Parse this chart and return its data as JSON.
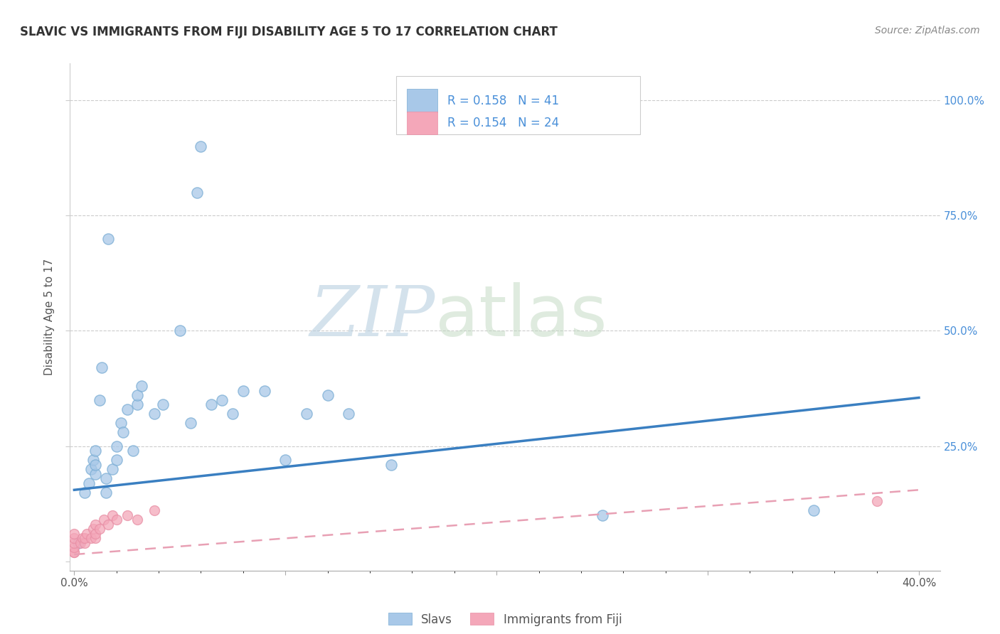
{
  "title": "SLAVIC VS IMMIGRANTS FROM FIJI DISABILITY AGE 5 TO 17 CORRELATION CHART",
  "source_text": "Source: ZipAtlas.com",
  "ylabel": "Disability Age 5 to 17",
  "xlim": [
    -0.002,
    0.41
  ],
  "ylim": [
    -0.02,
    1.08
  ],
  "slavs_color": "#A8C8E8",
  "slavs_edge": "#7aadd4",
  "fiji_color": "#F4A7B9",
  "fiji_edge": "#e88fa5",
  "trend_blue": "#3a7fc1",
  "trend_pink": "#e8a0b4",
  "background_color": "#ffffff",
  "grid_color": "#cccccc",
  "watermark_zip": "ZIP",
  "watermark_atlas": "atlas",
  "watermark_color_zip": "#b8cfe0",
  "watermark_color_atlas": "#c8d8b0",
  "right_tick_color": "#4A90D9",
  "slavs_x": [
    0.002,
    0.005,
    0.007,
    0.008,
    0.009,
    0.01,
    0.01,
    0.01,
    0.012,
    0.013,
    0.015,
    0.015,
    0.016,
    0.018,
    0.02,
    0.02,
    0.022,
    0.023,
    0.025,
    0.028,
    0.03,
    0.03,
    0.032,
    0.038,
    0.042,
    0.05,
    0.055,
    0.058,
    0.06,
    0.065,
    0.07,
    0.075,
    0.08,
    0.09,
    0.1,
    0.11,
    0.12,
    0.13,
    0.15,
    0.25,
    0.35
  ],
  "slavs_y": [
    0.04,
    0.15,
    0.17,
    0.2,
    0.22,
    0.19,
    0.21,
    0.24,
    0.35,
    0.42,
    0.15,
    0.18,
    0.7,
    0.2,
    0.22,
    0.25,
    0.3,
    0.28,
    0.33,
    0.24,
    0.34,
    0.36,
    0.38,
    0.32,
    0.34,
    0.5,
    0.3,
    0.8,
    0.9,
    0.34,
    0.35,
    0.32,
    0.37,
    0.37,
    0.22,
    0.32,
    0.36,
    0.32,
    0.21,
    0.1,
    0.11
  ],
  "fiji_x": [
    0.0,
    0.0,
    0.0,
    0.0,
    0.0,
    0.0,
    0.003,
    0.004,
    0.005,
    0.005,
    0.006,
    0.008,
    0.009,
    0.01,
    0.01,
    0.01,
    0.012,
    0.014,
    0.016,
    0.018,
    0.02,
    0.025,
    0.03,
    0.038,
    0.38
  ],
  "fiji_y": [
    0.02,
    0.02,
    0.03,
    0.04,
    0.05,
    0.06,
    0.04,
    0.05,
    0.04,
    0.05,
    0.06,
    0.05,
    0.07,
    0.05,
    0.06,
    0.08,
    0.07,
    0.09,
    0.08,
    0.1,
    0.09,
    0.1,
    0.09,
    0.11,
    0.13
  ],
  "trend_blue_start_y": 0.155,
  "trend_blue_end_y": 0.355,
  "trend_pink_start_y": 0.015,
  "trend_pink_end_y": 0.155
}
